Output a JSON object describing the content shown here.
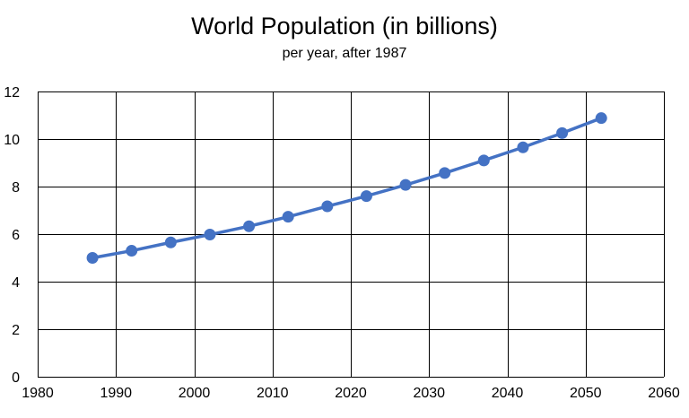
{
  "chart_data": {
    "type": "line",
    "title": "World Population (in billions)",
    "subtitle": "per year, after 1987",
    "xlabel": "",
    "ylabel": "",
    "xlim": [
      1980,
      2060
    ],
    "ylim": [
      0,
      12
    ],
    "xticks": [
      1980,
      1990,
      2000,
      2010,
      2020,
      2030,
      2040,
      2050,
      2060
    ],
    "yticks": [
      0,
      2,
      4,
      6,
      8,
      10,
      12
    ],
    "grid": true,
    "legend": "none",
    "series": [
      {
        "name": "World Population",
        "color": "#4472C4",
        "x": [
          1987,
          1992,
          1997,
          2002,
          2007,
          2012,
          2017,
          2022,
          2027,
          2032,
          2037,
          2042,
          2047,
          2052
        ],
        "y": [
          5.0,
          5.3,
          5.65,
          5.98,
          6.33,
          6.73,
          7.17,
          7.6,
          8.07,
          8.57,
          9.1,
          9.65,
          10.25,
          10.88
        ]
      }
    ]
  }
}
